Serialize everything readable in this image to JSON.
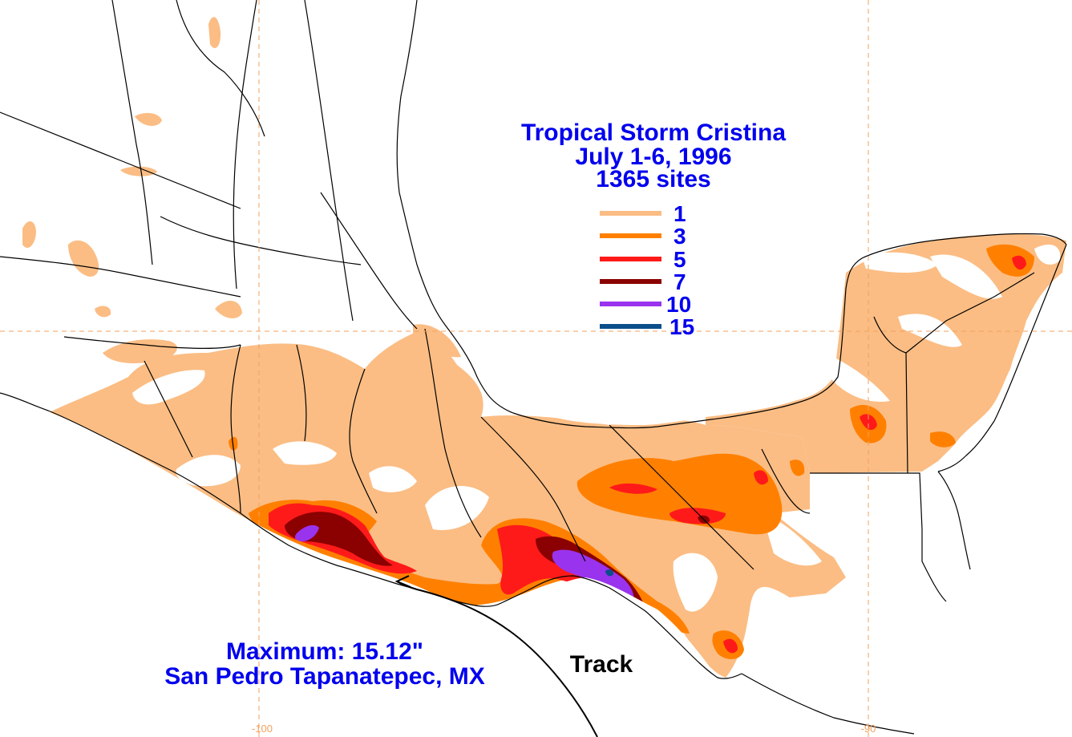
{
  "map": {
    "title_lines": [
      "Tropical Storm Cristina",
      "July 1-6, 1996",
      "1365 sites"
    ],
    "legend": [
      {
        "value": "1",
        "color": "#fbbd84"
      },
      {
        "value": "3",
        "color": "#ff8000"
      },
      {
        "value": "5",
        "color": "#ff1a1a"
      },
      {
        "value": "7",
        "color": "#8b0000"
      },
      {
        "value": "10",
        "color": "#9933ee"
      },
      {
        "value": "15",
        "color": "#0a4f8a"
      }
    ],
    "maximum": {
      "line1": "Maximum:  15.12\"",
      "line2": "San Pedro Tapanatepec, MX"
    },
    "track_label": "Track",
    "axis_labels": {
      "left": "-100",
      "right": "-90"
    },
    "colors": {
      "text": "#0000ee",
      "gridline": "#f2a15e",
      "border": "#000000"
    }
  }
}
